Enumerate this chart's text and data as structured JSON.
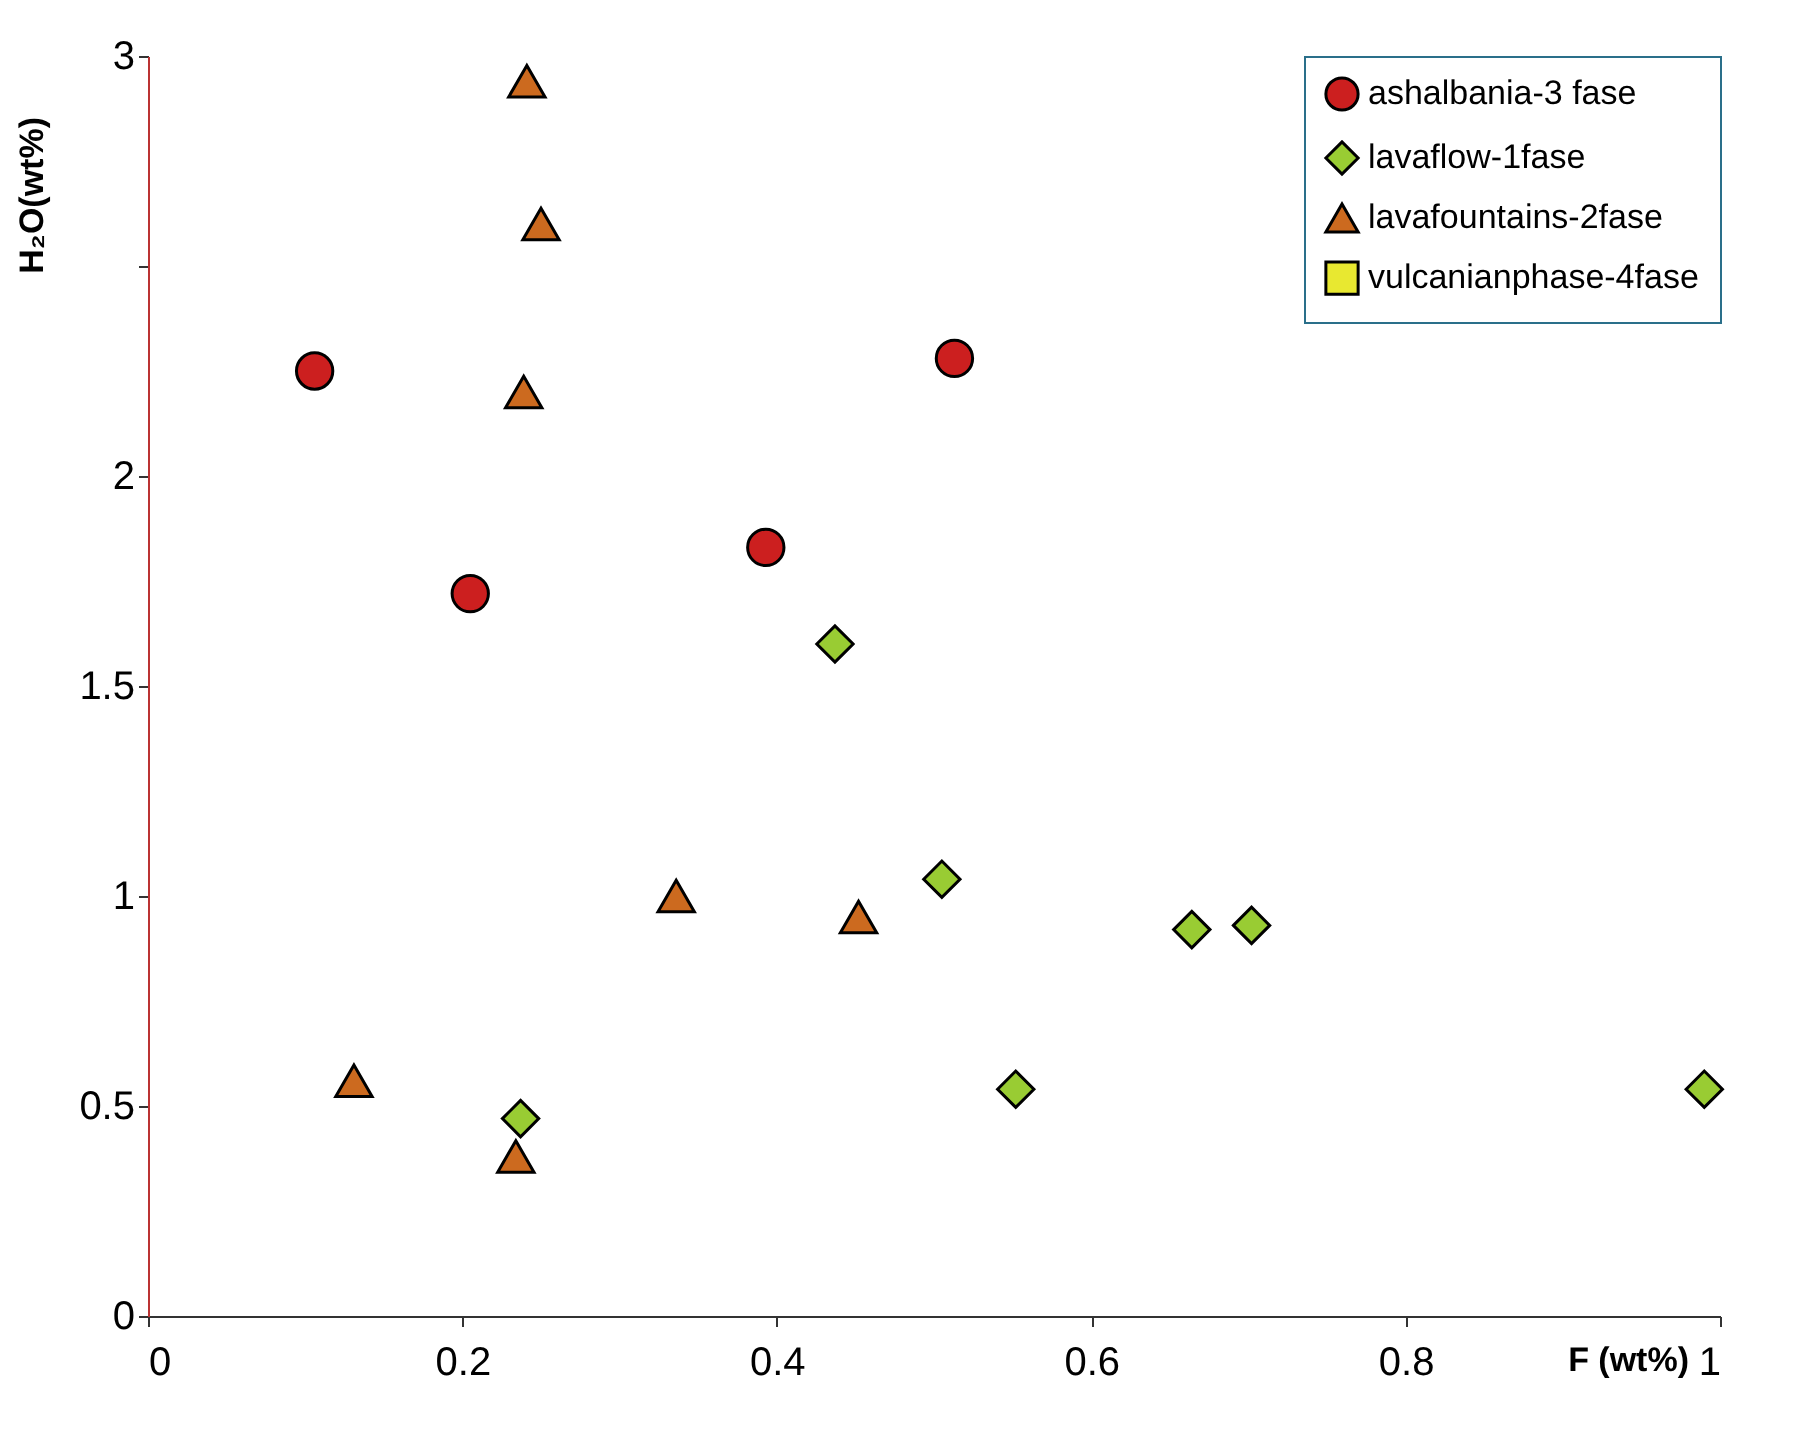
{
  "chart_data": {
    "type": "scatter",
    "xlabel": "F (wt%)",
    "ylabel": "H₂O(wt%)",
    "xlim": [
      0,
      1
    ],
    "xticks": [
      0,
      0.2,
      0.4,
      0.6,
      0.8,
      1
    ],
    "ylim": [
      0,
      3
    ],
    "yticks": [
      0,
      0.5,
      1,
      1.5,
      2,
      {
        "value": 2.5,
        "label": null
      },
      3
    ],
    "grid": false,
    "legend": "top right",
    "series": [
      {
        "name": "ashalbania-3 fase",
        "color": "#cc1f1f",
        "marker": "circle",
        "x": [
          0.106,
          0.205,
          0.393,
          0.513
        ],
        "values": [
          2.25,
          1.72,
          1.83,
          2.28
        ]
      },
      {
        "name": "lavaflow-1fase",
        "color": "#99cc33",
        "marker": "diamond",
        "x": [
          0.437,
          0.505,
          0.237,
          0.552,
          0.664,
          0.702,
          0.99
        ],
        "values": [
          1.6,
          1.04,
          0.47,
          0.54,
          0.92,
          0.93,
          0.54
        ]
      },
      {
        "name": "lavafountains-2fase",
        "color": "#cc6a1f",
        "marker": "triangle",
        "x": [
          0.241,
          0.25,
          0.239,
          0.131,
          0.336,
          0.452,
          0.234
        ],
        "values": [
          2.94,
          2.6,
          2.2,
          0.56,
          1.0,
          0.95,
          0.38
        ]
      },
      {
        "name": "vulcanianphase-4fase",
        "color": "#e8e830",
        "marker": "square"
      }
    ]
  }
}
